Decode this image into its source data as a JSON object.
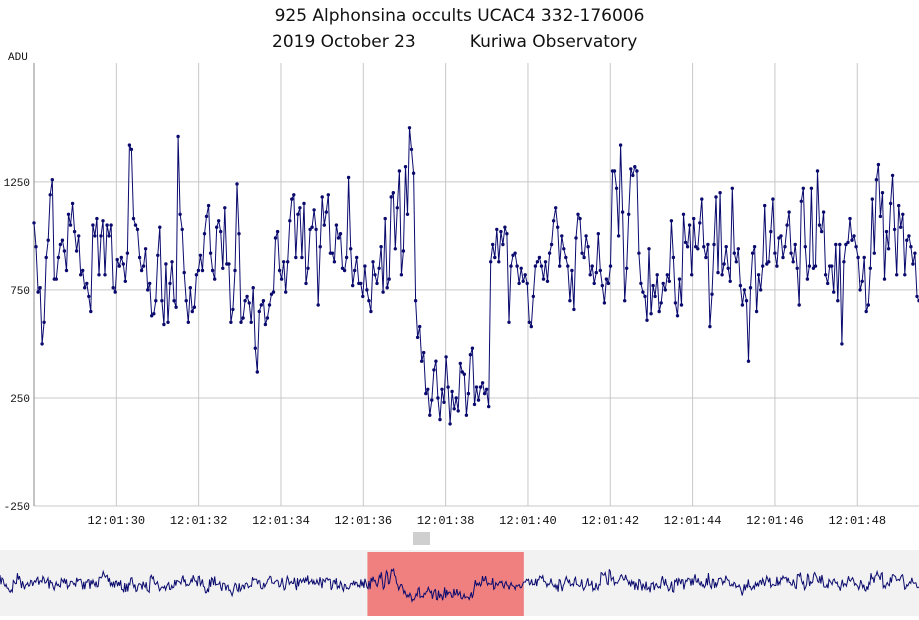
{
  "title_line1": "925 Alphonsina occults UCAC4 332-176006",
  "title_line2": "2019 October 23          Kuriwa Observatory",
  "colors": {
    "series": "#0a0a6e",
    "grid": "#c8c8c8",
    "highlight": "#f08080",
    "overview_bg": "#f2f2f2",
    "background": "#ffffff"
  },
  "chart_data": {
    "type": "line",
    "ylabel": "ADU",
    "ylim": [
      -250,
      1800
    ],
    "yticks": [
      -250,
      250,
      750,
      1250
    ],
    "xrange": [
      "12:01:28.0",
      "12:01:49.5"
    ],
    "xticks": [
      "12:01:30",
      "12:01:32",
      "12:01:34",
      "12:01:36",
      "12:01:38",
      "12:01:40",
      "12:01:42",
      "12:01:44",
      "12:01:46",
      "12:01:48"
    ],
    "grid": true,
    "markers": true,
    "series": [
      {
        "values": [
          1060,
          950,
          740,
          760,
          500,
          600,
          900,
          980,
          1190,
          1260,
          800,
          800,
          900,
          960,
          980,
          930,
          840,
          1100,
          1050,
          1150,
          1020,
          930,
          1000,
          820,
          840,
          760,
          780,
          720,
          650,
          1050,
          1000,
          1080,
          820,
          1000,
          1070,
          820,
          1050,
          1000,
          1050,
          760,
          740,
          890,
          860,
          900,
          870,
          790,
          920,
          1420,
          1400,
          1080,
          1050,
          1030,
          900,
          840,
          860,
          940,
          750,
          780,
          630,
          640,
          700,
          910,
          1040,
          700,
          590,
          870,
          600,
          780,
          880,
          700,
          670,
          1460,
          1100,
          1030,
          830,
          700,
          600,
          760,
          650,
          670,
          820,
          840,
          910,
          840,
          1010,
          1090,
          1140,
          920,
          840,
          800,
          1040,
          1070,
          1020,
          850,
          1130,
          870,
          870,
          600,
          660,
          840,
          1240,
          1010,
          600,
          620,
          700,
          720,
          690,
          600,
          760,
          480,
          370,
          650,
          680,
          700,
          590,
          620,
          680,
          730,
          740,
          990,
          1020,
          840,
          800,
          880,
          740,
          880,
          1070,
          1170,
          1190,
          900,
          1100,
          1130,
          900,
          1150,
          780,
          850,
          1030,
          1040,
          1120,
          1030,
          680,
          950,
          1180,
          1050,
          1110,
          1190,
          920,
          920,
          880,
          1050,
          990,
          1010,
          850,
          840,
          900,
          1270,
          940,
          770,
          840,
          900,
          780,
          780,
          720,
          860,
          750,
          700,
          650,
          880,
          820,
          780,
          850,
          950,
          740,
          1080,
          760,
          800,
          1180,
          1200,
          940,
          1130,
          1300,
          820,
          930,
          1320,
          1100,
          1500,
          1400,
          1290,
          700,
          530,
          580,
          420,
          460,
          270,
          290,
          170,
          240,
          380,
          420,
          250,
          150,
          290,
          230,
          440,
          300,
          130,
          280,
          200,
          250,
          190,
          410,
          370,
          360,
          170,
          270,
          450,
          480,
          220,
          300,
          240,
          300,
          320,
          270,
          290,
          210,
          880,
          960,
          900,
          1030,
          880,
          1020,
          960,
          1040,
          1010,
          600,
          860,
          910,
          920,
          860,
          780,
          850,
          790,
          820,
          780,
          600,
          580,
          720,
          860,
          880,
          900,
          860,
          800,
          880,
          790,
          920,
          960,
          1070,
          1130,
          1040,
          860,
          1000,
          940,
          900,
          860,
          700,
          840,
          660,
          990,
          1100,
          1080,
          920,
          900,
          1000,
          950,
          820,
          860,
          780,
          830,
          1010,
          840,
          770,
          690,
          800,
          780,
          860,
          1300,
          1300,
          1220,
          1000,
          1420,
          1110,
          700,
          850,
          1100,
          1310,
          1280,
          1320,
          1300,
          920,
          780,
          740,
          720,
          610,
          940,
          640,
          770,
          720,
          820,
          650,
          690,
          780,
          750,
          820,
          790,
          1070,
          900,
          690,
          630,
          800,
          680,
          1100,
          970,
          950,
          1050,
          820,
          1080,
          950,
          940,
          1060,
          1170,
          950,
          900,
          960,
          580,
          730,
          960,
          1180,
          830,
          1200,
          820,
          870,
          950,
          850,
          790,
          1220,
          920,
          880,
          940,
          770,
          680,
          750,
          700,
          420,
          760,
          920,
          950,
          650,
          820,
          750,
          860,
          1140,
          870,
          880,
          1020,
          1170,
          920,
          860,
          990,
          1000,
          900,
          950,
          1050,
          1110,
          920,
          880,
          960,
          850,
          680,
          1160,
          1220,
          950,
          800,
          860,
          1220,
          850,
          860,
          1300,
          1050,
          1020,
          1110,
          820,
          780,
          860,
          860,
          740,
          960,
          700,
          960,
          500,
          880,
          960,
          970,
          1080,
          980,
          1000,
          950,
          900,
          750,
          790,
          900,
          650,
          680,
          850,
          1170,
          920,
          1260,
          1330,
          1090,
          1200,
          800,
          1020,
          940,
          1150,
          1280,
          1030,
          820,
          1140,
          1040,
          1100,
          820,
          980,
          1000,
          950,
          870,
          920,
          720,
          700
        ],
        "start": "12:01:28.0",
        "end": "12:01:49.5"
      }
    ],
    "overview": {
      "highlight_range": [
        "12:01:36.1",
        "12:01:39.9"
      ],
      "scroll_position": 0.46
    }
  }
}
